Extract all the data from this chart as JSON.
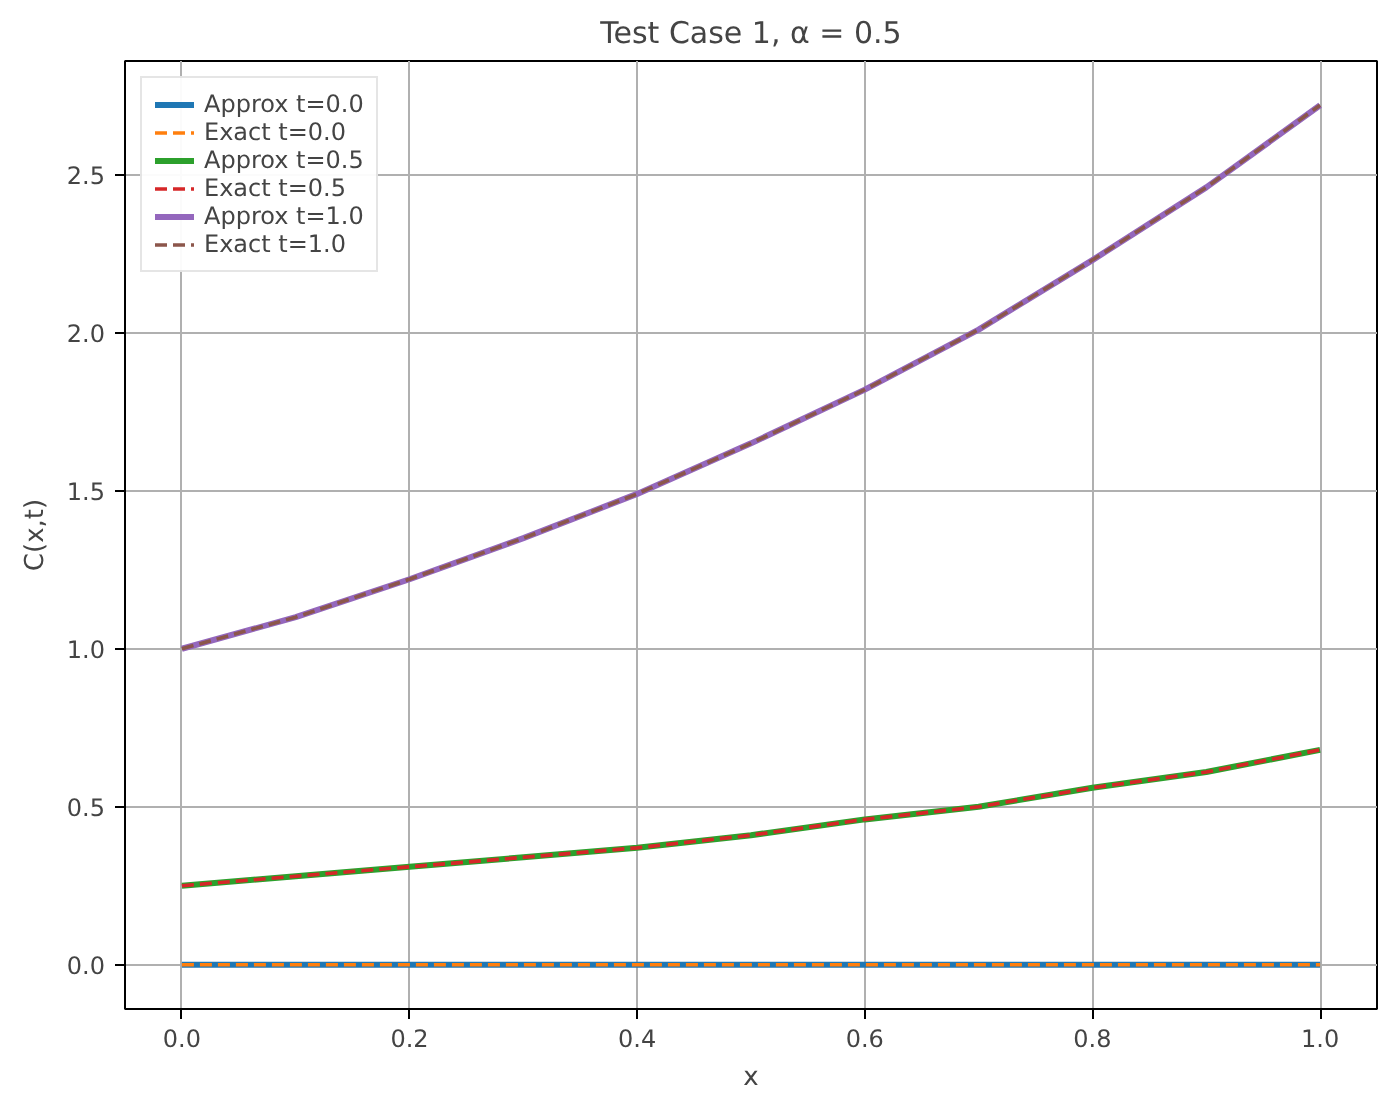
{
  "chart_data": {
    "type": "line",
    "title": "Test Case 1, α = 0.5",
    "xlabel": "x",
    "ylabel": "C(x,t)",
    "x": [
      0.0,
      0.1,
      0.2,
      0.3,
      0.4,
      0.5,
      0.6,
      0.7,
      0.8,
      0.9,
      1.0
    ],
    "series": [
      {
        "name": "Approx t=0.0",
        "color": "#1f77b4",
        "line_style": "solid",
        "values": [
          0,
          0,
          0,
          0,
          0,
          0,
          0,
          0,
          0,
          0,
          0
        ]
      },
      {
        "name": "Exact t=0.0",
        "color": "#ff7f0e",
        "line_style": "dashed",
        "values": [
          0,
          0,
          0,
          0,
          0,
          0,
          0,
          0,
          0,
          0,
          0
        ]
      },
      {
        "name": "Approx t=0.5",
        "color": "#2ca02c",
        "line_style": "solid",
        "values": [
          0.25,
          0.28,
          0.31,
          0.34,
          0.37,
          0.41,
          0.46,
          0.5,
          0.56,
          0.61,
          0.68
        ]
      },
      {
        "name": "Exact t=0.5",
        "color": "#d62728",
        "line_style": "dashed",
        "values": [
          0.25,
          0.28,
          0.31,
          0.34,
          0.37,
          0.41,
          0.46,
          0.5,
          0.56,
          0.61,
          0.68
        ]
      },
      {
        "name": "Approx t=1.0",
        "color": "#9467bd",
        "line_style": "solid",
        "values": [
          1.0,
          1.1,
          1.22,
          1.35,
          1.49,
          1.65,
          1.82,
          2.01,
          2.23,
          2.46,
          2.72
        ]
      },
      {
        "name": "Exact t=1.0",
        "color": "#8c564b",
        "line_style": "dashed",
        "values": [
          1.0,
          1.1,
          1.22,
          1.35,
          1.49,
          1.65,
          1.82,
          2.01,
          2.23,
          2.46,
          2.72
        ]
      }
    ],
    "xlim": [
      -0.05,
      1.05
    ],
    "ylim": [
      -0.14,
      2.86
    ],
    "xticks": [
      {
        "value": 0,
        "label": "0.0"
      },
      {
        "value": 0.2,
        "label": "0.2"
      },
      {
        "value": 0.4,
        "label": "0.4"
      },
      {
        "value": 0.6,
        "label": "0.6"
      },
      {
        "value": 0.8,
        "label": "0.8"
      },
      {
        "value": 1,
        "label": "1.0"
      }
    ],
    "yticks": [
      {
        "value": 0,
        "label": "0.0"
      },
      {
        "value": 0.5,
        "label": "0.5"
      },
      {
        "value": 1,
        "label": "1.0"
      },
      {
        "value": 1.5,
        "label": "1.5"
      },
      {
        "value": 2,
        "label": "2.0"
      },
      {
        "value": 2.5,
        "label": "2.5"
      }
    ],
    "grid": true,
    "legend": "top left"
  }
}
